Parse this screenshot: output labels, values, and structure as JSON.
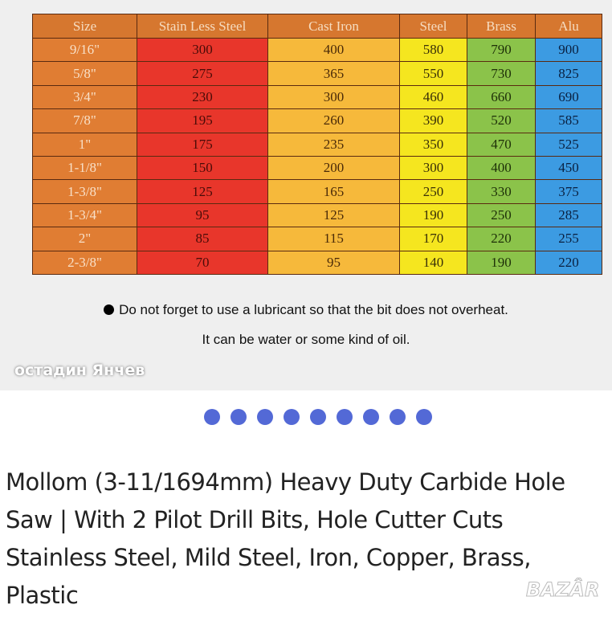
{
  "overlay_name": "остадин Янчев",
  "table": {
    "headers": [
      "Size",
      "Stain Less Steel",
      "Cast Iron",
      "Steel",
      "Brass",
      "Alu"
    ],
    "rows": [
      [
        "9/16\"",
        "300",
        "400",
        "580",
        "790",
        "900"
      ],
      [
        "5/8\"",
        "275",
        "365",
        "550",
        "730",
        "825"
      ],
      [
        "3/4\"",
        "230",
        "300",
        "460",
        "660",
        "690"
      ],
      [
        "7/8\"",
        "195",
        "260",
        "390",
        "520",
        "585"
      ],
      [
        "1\"",
        "175",
        "235",
        "350",
        "470",
        "525"
      ],
      [
        "1-1/8\"",
        "150",
        "200",
        "300",
        "400",
        "450"
      ],
      [
        "1-3/8\"",
        "125",
        "165",
        "250",
        "330",
        "375"
      ],
      [
        "1-3/4\"",
        "95",
        "125",
        "190",
        "250",
        "285"
      ],
      [
        "2\"",
        "85",
        "115",
        "170",
        "220",
        "255"
      ],
      [
        "2-3/8\"",
        "70",
        "95",
        "140",
        "190",
        "220"
      ]
    ]
  },
  "note_line1": "Do not forget to use a lubricant so that the bit does not overheat.",
  "note_line2": "It can be water or some kind of oil.",
  "carousel": {
    "count": 9,
    "color": "#5369d6"
  },
  "product_title": "Mollom (3-11/1694mm) Heavy Duty Carbide Hole Saw | With 2 Pilot Drill Bits, Hole Cutter Cuts Stainless Steel, Mild Steel, Iron, Copper, Brass, Plastic",
  "watermark": "BAZAR"
}
